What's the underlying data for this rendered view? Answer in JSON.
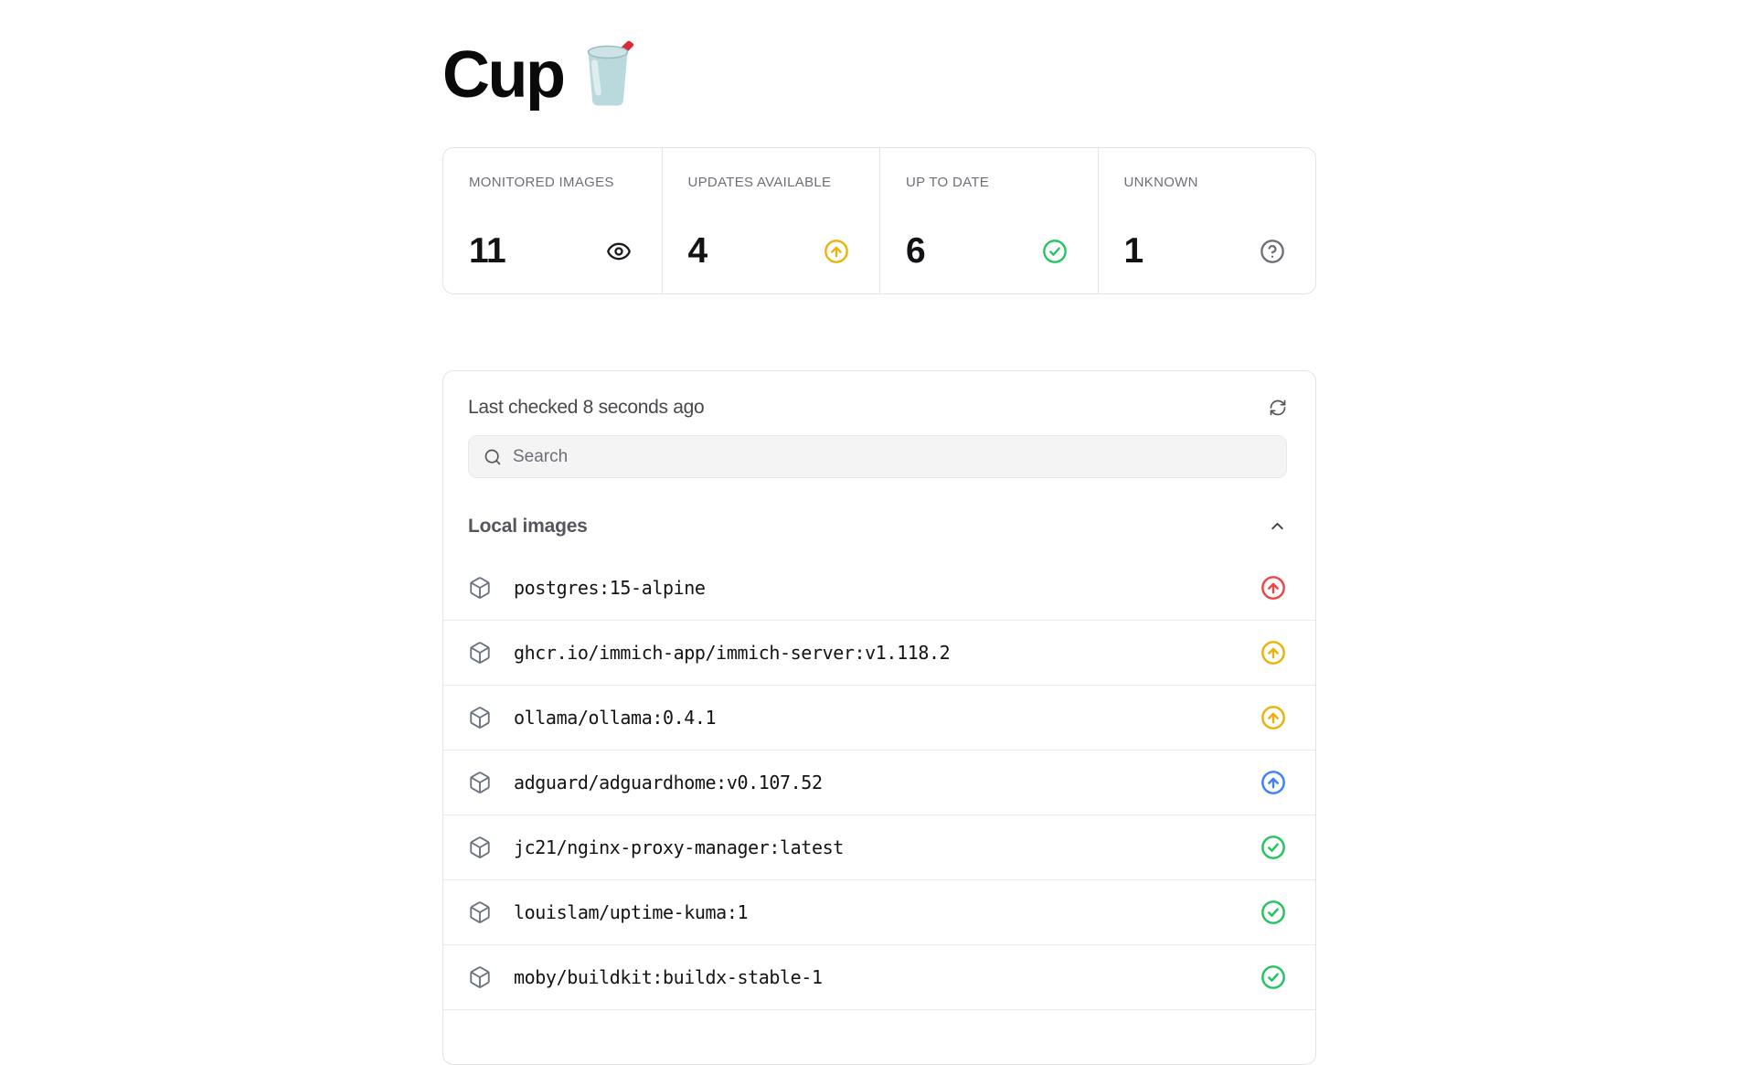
{
  "header": {
    "title": "Cup",
    "emoji": "cup-with-straw"
  },
  "stats": [
    {
      "label": "MONITORED IMAGES",
      "value": "11",
      "icon": "eye",
      "icon_color": "#1b1b1f"
    },
    {
      "label": "UPDATES AVAILABLE",
      "value": "4",
      "icon": "arrow-up-circle",
      "icon_color": "#eab308"
    },
    {
      "label": "UP TO DATE",
      "value": "6",
      "icon": "check-circle",
      "icon_color": "#22c55e"
    },
    {
      "label": "UNKNOWN",
      "value": "1",
      "icon": "help-circle",
      "icon_color": "#6e6e76"
    }
  ],
  "panel": {
    "last_checked": "Last checked 8 seconds ago",
    "refresh_icon": "refresh",
    "search_placeholder": "Search",
    "section_title": "Local images",
    "collapse_icon": "chevron-up",
    "images": [
      {
        "name": "postgres:15-alpine",
        "status": "update-available",
        "icon": "arrow-up-circle",
        "icon_color": "#ef4444"
      },
      {
        "name": "ghcr.io/immich-app/immich-server:v1.118.2",
        "status": "update-available",
        "icon": "arrow-up-circle",
        "icon_color": "#eab308"
      },
      {
        "name": "ollama/ollama:0.4.1",
        "status": "update-available",
        "icon": "arrow-up-circle",
        "icon_color": "#eab308"
      },
      {
        "name": "adguard/adguardhome:v0.107.52",
        "status": "update-available",
        "icon": "arrow-up-circle",
        "icon_color": "#3b82f6"
      },
      {
        "name": "jc21/nginx-proxy-manager:latest",
        "status": "up-to-date",
        "icon": "check-circle",
        "icon_color": "#22c55e"
      },
      {
        "name": "louislam/uptime-kuma:1",
        "status": "up-to-date",
        "icon": "check-circle",
        "icon_color": "#22c55e"
      },
      {
        "name": "moby/buildkit:buildx-stable-1",
        "status": "up-to-date",
        "icon": "check-circle",
        "icon_color": "#22c55e"
      }
    ]
  }
}
